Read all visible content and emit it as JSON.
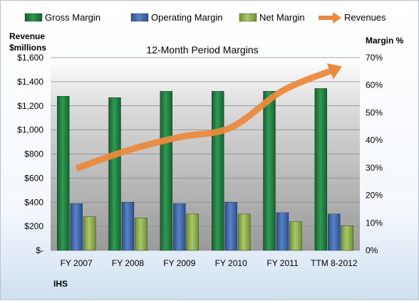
{
  "chart_data": {
    "type": "bar",
    "title": "12-Month Period Margins",
    "company_label": "IHS",
    "left_axis_label_line1": "Revenue",
    "left_axis_label_line2": "$millions",
    "right_axis_label": "Margin %",
    "categories": [
      "FY 2007",
      "FY 2008",
      "FY 2009",
      "FY 2010",
      "FY 2011",
      "TTM 8-2012"
    ],
    "left_ticks": [
      "$-",
      "$200",
      "$400",
      "$600",
      "$800",
      "$1,000",
      "$1,200",
      "$1,400",
      "$1,600"
    ],
    "right_ticks": [
      "0%",
      "10%",
      "20%",
      "30%",
      "40%",
      "50%",
      "60%",
      "70%"
    ],
    "y_left_lim": [
      0,
      1600
    ],
    "y_right_lim": [
      0,
      70
    ],
    "margin_series": [
      {
        "name": "Gross Margin",
        "color": "#1f7a3c",
        "values": [
          56,
          55.5,
          57.8,
          57.8,
          57.8,
          58.8
        ]
      },
      {
        "name": "Operating Margin",
        "color": "#3a62a8",
        "values": [
          17,
          17.5,
          17,
          17.5,
          13.7,
          13.2
        ]
      },
      {
        "name": "Net Margin",
        "color": "#8fb04e",
        "values": [
          12.2,
          11.8,
          13.2,
          13.2,
          10.4,
          9
        ]
      }
    ],
    "revenue_series": {
      "name": "Revenues",
      "color": "#ea8a3c",
      "values": [
        680,
        830,
        940,
        1020,
        1325,
        1500
      ]
    },
    "legend_position": "top",
    "grid": true
  }
}
